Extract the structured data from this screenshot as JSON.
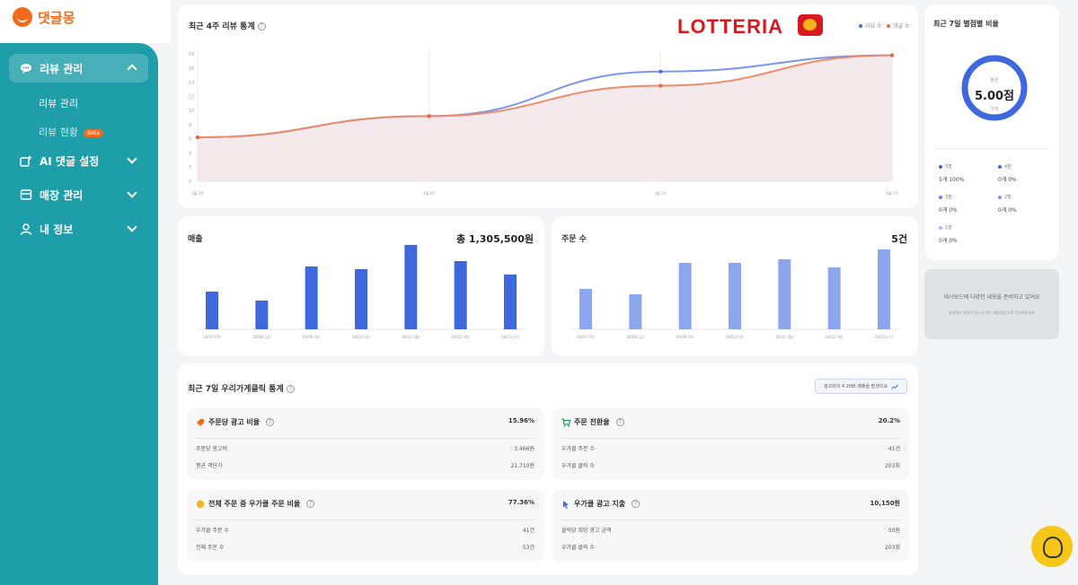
{
  "app": {
    "logo_text": "댓글몽"
  },
  "sidebar": {
    "review_manage": "리뷰 관리",
    "sub_review_manage": "리뷰 관리",
    "sub_review_status": "리뷰 현황",
    "beta": "Beta",
    "ai_setting": "AI 댓글 설정",
    "store_manage": "매장 관리",
    "my_info": "내 정보"
  },
  "review_chart": {
    "title": "최근 4주 리뷰 통계",
    "brand": "LOTTERIA",
    "legend": [
      "리뷰 수",
      "댓글 수"
    ],
    "colors": {
      "review": "#7b96f0",
      "reply": "#ee8a6a",
      "fill": "#f1e3e6"
    }
  },
  "chart_data": [
    {
      "type": "area",
      "title": "최근 4주 리뷰 통계",
      "x": [
        "3월 3주",
        "3월 4주",
        "3월 5주",
        "4월 1주"
      ],
      "y_ticks": [
        0,
        2,
        4,
        6,
        8,
        10,
        12,
        14,
        16,
        18
      ],
      "ylim": [
        0,
        18
      ],
      "series": [
        {
          "name": "리뷰 수",
          "values": [
            6.2,
            9.2,
            15.5,
            17.8
          ]
        },
        {
          "name": "댓글 수",
          "values": [
            6.2,
            9.2,
            13.5,
            17.8
          ]
        }
      ]
    },
    {
      "type": "bar",
      "title": "매출",
      "categories": [
        "04/07 (목)",
        "04/08 (금)",
        "04/09 (토)",
        "04/10 (일)",
        "04/11 (월)",
        "04/12 (화)",
        "04/13 (수)"
      ],
      "values": [
        42,
        32,
        70,
        67,
        94,
        76,
        61
      ],
      "color": "#3f68dc"
    },
    {
      "type": "bar",
      "title": "주문 수",
      "categories": [
        "04/07 (목)",
        "04/08 (금)",
        "04/09 (토)",
        "04/10 (일)",
        "04/11 (월)",
        "04/12 (화)",
        "04/13 (수)"
      ],
      "values": [
        45,
        39,
        74,
        74,
        78,
        69,
        89
      ],
      "color": "#8ba6ec"
    }
  ],
  "sales": {
    "title": "매출",
    "total": "총 1,305,500원"
  },
  "orders": {
    "title": "주문 수",
    "total": "5건"
  },
  "click_stats": {
    "title": "최근 7일 우리가게클릭 통계",
    "promo": "광고비의 4.20배 매출을 발생의요",
    "ad_ratio": {
      "title": "주문당 광고 비율",
      "value": "15.96%",
      "rows": [
        [
          "주문당 광고비",
          "3,466원"
        ],
        [
          "평균 객단가",
          "21,710원"
        ]
      ]
    },
    "conversion": {
      "title": "주문 전환율",
      "value": "20.2%",
      "rows": [
        [
          "우가클 주문 수",
          "41건"
        ],
        [
          "우가클 클릭 수",
          "203회"
        ]
      ]
    },
    "order_ratio": {
      "title": "전체 주문 중 우가클 주문 비율",
      "value": "77.36%",
      "rows": [
        [
          "우가클 주문 수",
          "41건"
        ],
        [
          "전체 주문 수",
          "53건"
        ]
      ]
    },
    "ad_spend": {
      "title": "우가클 광고 지출",
      "value": "10,150원",
      "rows": [
        [
          "클릭당 희망 광고 금액",
          "50원"
        ],
        [
          "우가클 클릭 수",
          "203회"
        ]
      ]
    }
  },
  "rating": {
    "title": "최근 7일 별점별 비율",
    "center_label": "평균",
    "score": "5.00점",
    "count": "5개",
    "items": [
      {
        "star": "5점",
        "value": "5개 100%"
      },
      {
        "star": "4점",
        "value": "0개 0%"
      },
      {
        "star": "3점",
        "value": "0개 0%"
      },
      {
        "star": "2점",
        "value": "0개 0%"
      },
      {
        "star": "1점",
        "value": "0개 0%"
      }
    ]
  },
  "notice": {
    "line1": "대시보드에 다양한 내용을 준비하고 있어요",
    "line2": "관련해서 의견이 있으시다면, 채팅상담 으로 문의해주세요"
  }
}
